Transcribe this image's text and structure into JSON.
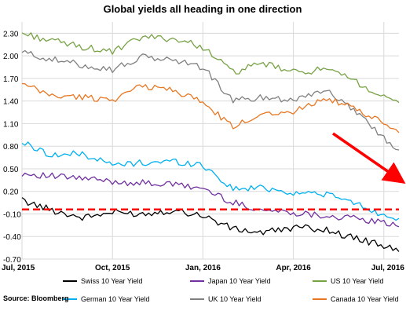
{
  "chart_data": {
    "type": "line",
    "title": "Global yields all heading in one direction",
    "source": "Source: Bloomberg",
    "xlabel": "",
    "ylabel": "",
    "x_ticks": [
      "Jul, 2015",
      "Oct, 2015",
      "Jan, 2016",
      "Apr, 2016",
      "Jul, 2016"
    ],
    "y_ticks": [
      "2.30",
      "2.00",
      "1.70",
      "1.40",
      "1.10",
      "0.80",
      "0.50",
      "0.20",
      "-0.10",
      "-0.40",
      "-0.70"
    ],
    "ylim": [
      -0.7,
      2.45
    ],
    "x": [
      "Jul 2015",
      "Aug 2015",
      "Sep 2015",
      "Oct 2015",
      "Nov 2015",
      "Dec 2015",
      "Jan 2016",
      "Feb 2016",
      "Mar 2016",
      "Apr 2016",
      "May 2016",
      "Jun 2016",
      "Jul 2016",
      "mid-Jul 2016"
    ],
    "grid": true,
    "legend_position": "bottom",
    "series": [
      {
        "name": "Swiss 10 Year Yield",
        "color": "#000000",
        "values": [
          0.08,
          -0.05,
          -0.15,
          -0.08,
          -0.1,
          -0.05,
          -0.12,
          -0.3,
          -0.35,
          -0.28,
          -0.3,
          -0.42,
          -0.52,
          -0.6
        ]
      },
      {
        "name": "Japan 10 Year Yield",
        "color": "#7030a0",
        "values": [
          0.44,
          0.4,
          0.37,
          0.33,
          0.31,
          0.29,
          0.24,
          0.05,
          -0.05,
          -0.08,
          -0.12,
          -0.16,
          -0.22,
          -0.27
        ]
      },
      {
        "name": "US 10 Year Yield",
        "color": "#77a244",
        "values": [
          2.3,
          2.2,
          2.12,
          2.05,
          2.25,
          2.23,
          2.12,
          1.78,
          1.9,
          1.78,
          1.82,
          1.68,
          1.44,
          1.38
        ]
      },
      {
        "name": "German 10 Year Yield",
        "color": "#00b0f0",
        "values": [
          0.85,
          0.68,
          0.7,
          0.55,
          0.58,
          0.6,
          0.55,
          0.23,
          0.25,
          0.18,
          0.17,
          0.05,
          -0.12,
          -0.16
        ]
      },
      {
        "name": "UK 10 Year Yield",
        "color": "#808080",
        "values": [
          2.05,
          1.95,
          1.88,
          1.82,
          1.98,
          1.95,
          1.85,
          1.4,
          1.45,
          1.42,
          1.55,
          1.3,
          0.9,
          0.75
        ]
      },
      {
        "name": "Canada 10 Year Yield",
        "color": "#e87722",
        "values": [
          1.62,
          1.47,
          1.45,
          1.42,
          1.6,
          1.55,
          1.38,
          1.05,
          1.25,
          1.25,
          1.45,
          1.3,
          1.1,
          0.98
        ]
      }
    ],
    "reference_line": {
      "value": -0.04,
      "color": "#ff0000"
    },
    "trend_arrow_color": "#ff0000",
    "grid_color": "#d9d9d9"
  }
}
